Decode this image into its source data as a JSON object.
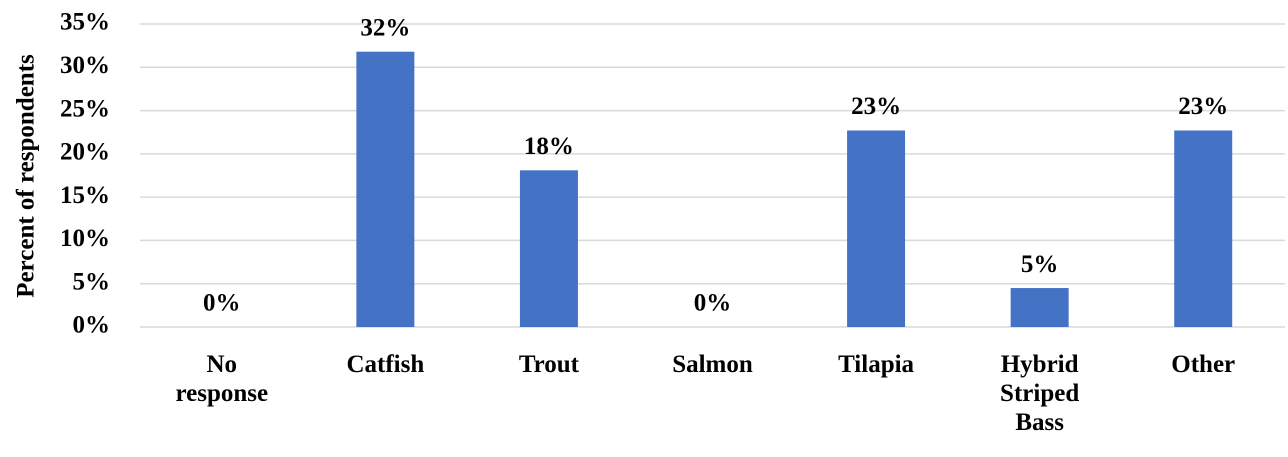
{
  "chart_data": {
    "type": "bar",
    "y_label": "Percent of respondents",
    "categories": [
      "No response",
      "Catfish",
      "Trout",
      "Salmon",
      "Tilapia",
      "Hybrid Striped Bass",
      "Other"
    ],
    "values": [
      0,
      31.8,
      18.1,
      0,
      22.7,
      4.5,
      22.7
    ],
    "value_labels": [
      "0%",
      "32%",
      "18%",
      "0%",
      "23%",
      "5%",
      "23%"
    ],
    "color": "#4472c4",
    "ylim": [
      0,
      35
    ],
    "yticks": [
      {
        "value": 0,
        "label": "0%"
      },
      {
        "value": 5,
        "label": "5%"
      },
      {
        "value": 10,
        "label": "10%"
      },
      {
        "value": 15,
        "label": "15%"
      },
      {
        "value": 20,
        "label": "20%"
      },
      {
        "value": 25,
        "label": "25%"
      },
      {
        "value": 30,
        "label": "30%"
      },
      {
        "value": 35,
        "label": "35%"
      }
    ],
    "grid": true
  }
}
